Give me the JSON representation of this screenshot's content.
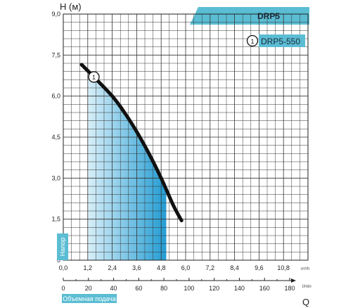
{
  "chart_data": {
    "type": "line",
    "title": "DRP5",
    "ylabel": "H (м)",
    "ylabel_side": "Напор",
    "xlabel_q": "Q",
    "xlabel_side": "Объемная подача",
    "unit_m3h": "m³/h",
    "unit_lmin": "l/min",
    "ylim": [
      0,
      9
    ],
    "y_ticks": [
      "9,0",
      "7,5",
      "6,0",
      "4,5",
      "3,0",
      "1,5",
      "0"
    ],
    "y_tick_values": [
      9.0,
      7.5,
      6.0,
      4.5,
      3.0,
      1.5,
      0
    ],
    "xlim": [
      0,
      12
    ],
    "x_ticks_m3h": [
      "0,0",
      "1,2",
      "2,4",
      "3,6",
      "4,8",
      "6,0",
      "7,2",
      "8,4",
      "9,6",
      "10,8"
    ],
    "x_tick_values_m3h": [
      0,
      1.2,
      2.4,
      3.6,
      4.8,
      6.0,
      7.2,
      8.4,
      9.6,
      10.8
    ],
    "x_ticks_lmin": [
      "0",
      "20",
      "40",
      "60",
      "80",
      "100",
      "120",
      "140",
      "160",
      "180"
    ],
    "x_tick_values_lmin": [
      0,
      20,
      40,
      60,
      80,
      100,
      120,
      140,
      160,
      180
    ],
    "grid": true,
    "legend_position": "top-right",
    "series": [
      {
        "name": "DRP5-550",
        "marker": "1",
        "color": "#111111",
        "x": [
          0.9,
          1.5,
          2.4,
          3.0,
          3.6,
          4.2,
          4.8,
          5.4,
          5.8
        ],
        "y": [
          7.15,
          6.7,
          6.0,
          5.4,
          4.7,
          3.9,
          3.0,
          2.0,
          1.45
        ]
      }
    ],
    "operating_range": {
      "x_from": 1.2,
      "x_to": 5.05,
      "color": "#3aa9dd"
    },
    "colors": {
      "accent": "#5bbdd3",
      "grid": "#333333",
      "fill": "#2ba3d6"
    }
  }
}
